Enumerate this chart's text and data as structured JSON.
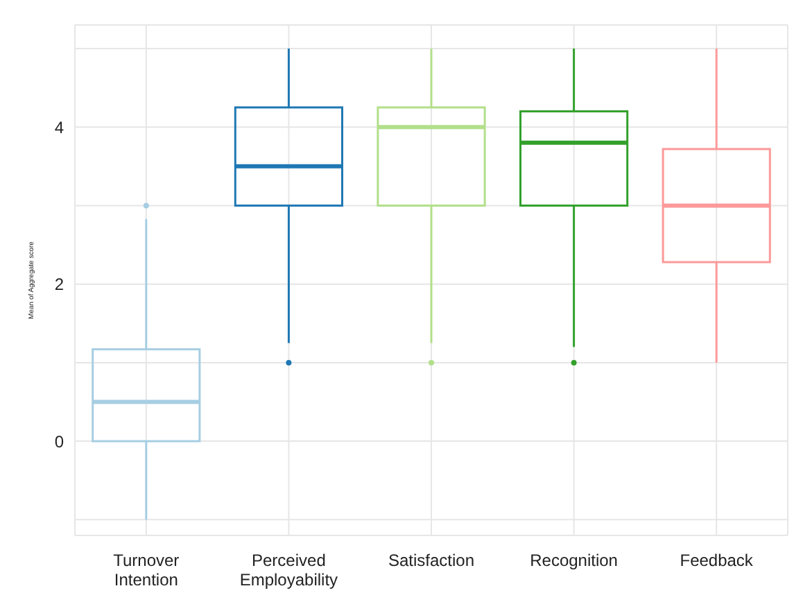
{
  "chart_data": {
    "type": "box",
    "ylabel": "Mean of Aggregate score",
    "categories": [
      "Turnover Intention",
      "Perceived Employability",
      "Satisfaction",
      "Recognition",
      "Feedback"
    ],
    "colors": [
      "#a6cee3",
      "#1f78b4",
      "#b2df8a",
      "#33a02c",
      "#fb9a99"
    ],
    "boxes": [
      {
        "low": -1,
        "q1": 0,
        "median": 0.5,
        "q3": 1.17,
        "high": 2.83,
        "outliers": [
          3
        ]
      },
      {
        "low": 1.25,
        "q1": 3,
        "median": 3.5,
        "q3": 4.25,
        "high": 5,
        "outliers": [
          1
        ]
      },
      {
        "low": 1.25,
        "q1": 3,
        "median": 4,
        "q3": 4.25,
        "high": 5,
        "outliers": [
          1
        ]
      },
      {
        "low": 1.2,
        "q1": 3,
        "median": 3.8,
        "q3": 4.2,
        "high": 5,
        "outliers": [
          1
        ]
      },
      {
        "low": 1,
        "q1": 2.28,
        "median": 3,
        "q3": 3.72,
        "high": 5
      }
    ],
    "ylim": [
      -1.2,
      5.3
    ],
    "yticks": [
      {
        "value": -1,
        "label": null
      },
      0,
      {
        "value": 1,
        "label": null
      },
      2,
      {
        "value": 3,
        "label": null
      },
      4,
      {
        "value": 5,
        "label": null
      }
    ],
    "grid": true
  }
}
